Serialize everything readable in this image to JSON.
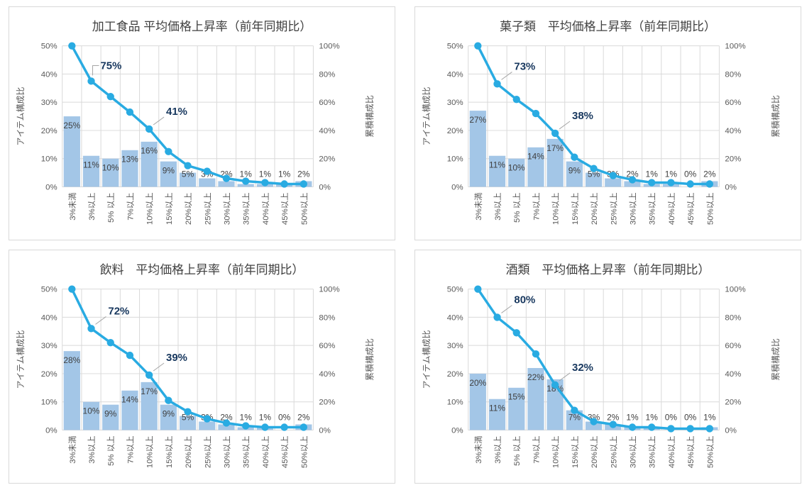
{
  "page": {
    "background": "#ffffff"
  },
  "shared": {
    "categories": [
      "3%未満",
      "3%以上",
      "5% 以上",
      "7%以上",
      "10%以上",
      "15%以上",
      "20%以上",
      "25%以上",
      "30%以上",
      "35%以上",
      "40%以上",
      "45%以上",
      "50%以上"
    ],
    "left_axis": {
      "title": "アイテム構成比",
      "ticks": [
        "0%",
        "10%",
        "20%",
        "30%",
        "40%",
        "50%"
      ],
      "min": 0,
      "max": 50
    },
    "right_axis": {
      "title": "累積構成比",
      "ticks": [
        "0%",
        "20%",
        "40%",
        "60%",
        "80%",
        "100%"
      ],
      "min": 0,
      "max": 100
    },
    "grid": "on",
    "legend": "none",
    "colors": {
      "bar_fill": "#a3c6e7",
      "line": "#29abe2",
      "annotation_text": "#17375e",
      "leader_line": "#a6a6a6",
      "axis_text": "#595959",
      "bar_label_text": "#404040",
      "title_text": "#404040",
      "gridline": "#d9d9d9",
      "chart_border": "#d9d9d9"
    }
  },
  "chart_data": [
    {
      "type": "bar",
      "subtype": "pareto-bar-line",
      "title": "加工食品 平均価格上昇率（前年同期比）",
      "xlabel": "",
      "ylabel_left": "アイテム構成比",
      "ylabel_right": "累積構成比",
      "ylim_left": [
        0,
        50
      ],
      "ylim_right": [
        0,
        100
      ],
      "series": [
        {
          "name": "アイテム構成比",
          "type": "bar",
          "axis": "left",
          "values": [
            25,
            11,
            10,
            13,
            16,
            9,
            5,
            3,
            2,
            1,
            1,
            1,
            2
          ],
          "labels": [
            "25%",
            "11%",
            "10%",
            "13%",
            "16%",
            "9%",
            "5%",
            "3%",
            "2%",
            "1%",
            "1%",
            "1%",
            "2%"
          ]
        },
        {
          "name": "累積構成比",
          "type": "line",
          "axis": "right",
          "values": [
            100,
            75,
            64,
            53,
            41,
            25,
            15,
            11,
            6,
            4,
            3,
            2,
            2
          ]
        }
      ],
      "annotations": [
        {
          "point_index": 1,
          "label": "75%",
          "leader": "elbow"
        },
        {
          "point_index": 4,
          "label": "41%",
          "leader": "diag"
        }
      ]
    },
    {
      "type": "bar",
      "subtype": "pareto-bar-line",
      "title": "菓子類　平均価格上昇率（前年同期比）",
      "xlabel": "",
      "ylabel_left": "アイテム構成比",
      "ylabel_right": "累積構成比",
      "ylim_left": [
        0,
        50
      ],
      "ylim_right": [
        0,
        100
      ],
      "series": [
        {
          "name": "アイテム構成比",
          "type": "bar",
          "axis": "left",
          "values": [
            27,
            11,
            10,
            14,
            17,
            9,
            5,
            3,
            2,
            1,
            1,
            0,
            2
          ],
          "labels": [
            "27%",
            "11%",
            "10%",
            "14%",
            "17%",
            "9%",
            "5%",
            "3%",
            "2%",
            "1%",
            "1%",
            "0%",
            "2%"
          ]
        },
        {
          "name": "累積構成比",
          "type": "line",
          "axis": "right",
          "values": [
            100,
            73,
            62,
            52,
            38,
            21,
            13,
            8,
            5,
            3,
            3,
            2,
            2
          ]
        }
      ],
      "annotations": [
        {
          "point_index": 1,
          "label": "73%",
          "leader": "diag"
        },
        {
          "point_index": 4,
          "label": "38%",
          "leader": "diag"
        }
      ]
    },
    {
      "type": "bar",
      "subtype": "pareto-bar-line",
      "title": "飲料　平均価格上昇率（前年同期比）",
      "xlabel": "",
      "ylabel_left": "アイテム構成比",
      "ylabel_right": "累積構成比",
      "ylim_left": [
        0,
        50
      ],
      "ylim_right": [
        0,
        100
      ],
      "series": [
        {
          "name": "アイテム構成比",
          "type": "bar",
          "axis": "left",
          "values": [
            28,
            10,
            9,
            14,
            17,
            9,
            5,
            3,
            2,
            1,
            1,
            0,
            2
          ],
          "labels": [
            "28%",
            "10%",
            "9%",
            "14%",
            "17%",
            "9%",
            "5%",
            "3%",
            "2%",
            "1%",
            "1%",
            "0%",
            "2%"
          ]
        },
        {
          "name": "累積構成比",
          "type": "line",
          "axis": "right",
          "values": [
            100,
            72,
            62,
            53,
            39,
            21,
            13,
            8,
            5,
            3,
            2,
            2,
            2
          ]
        }
      ],
      "annotations": [
        {
          "point_index": 1,
          "label": "72%",
          "leader": "diag"
        },
        {
          "point_index": 4,
          "label": "39%",
          "leader": "diag"
        }
      ]
    },
    {
      "type": "bar",
      "subtype": "pareto-bar-line",
      "title": "酒類　平均価格上昇率（前年同期比）",
      "xlabel": "",
      "ylabel_left": "アイテム構成比",
      "ylabel_right": "累積構成比",
      "ylim_left": [
        0,
        50
      ],
      "ylim_right": [
        0,
        100
      ],
      "series": [
        {
          "name": "アイテム構成比",
          "type": "bar",
          "axis": "left",
          "values": [
            20,
            11,
            15,
            22,
            18,
            7,
            3,
            2,
            1,
            1,
            0,
            0,
            1
          ],
          "labels": [
            "20%",
            "11%",
            "15%",
            "22%",
            "18%",
            "7%",
            "3%",
            "2%",
            "1%",
            "1%",
            "0%",
            "0%",
            "1%"
          ]
        },
        {
          "name": "累積構成比",
          "type": "line",
          "axis": "right",
          "values": [
            100,
            80,
            69,
            54,
            32,
            14,
            6,
            4,
            2,
            2,
            1,
            1,
            1
          ]
        }
      ],
      "annotations": [
        {
          "point_index": 1,
          "label": "80%",
          "leader": "diag"
        },
        {
          "point_index": 4,
          "label": "32%",
          "leader": "diag"
        }
      ]
    }
  ]
}
